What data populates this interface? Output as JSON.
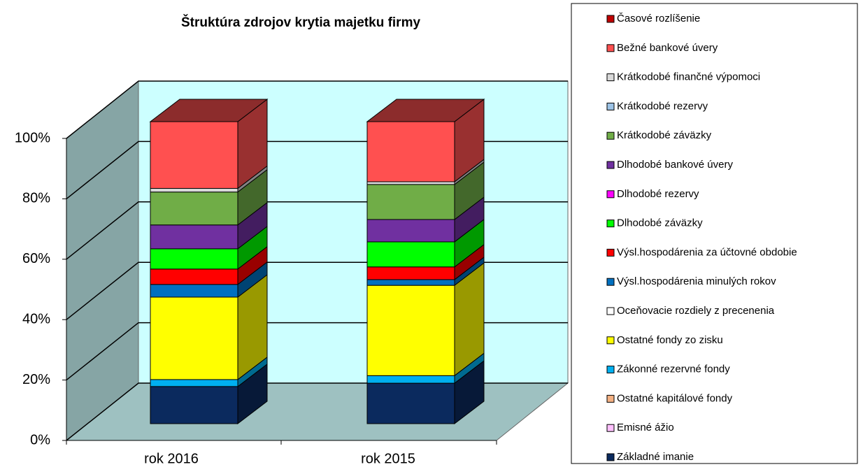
{
  "chart_data": {
    "type": "bar3d_stacked",
    "title": "Štruktúra zdrojov krytia majetku firmy",
    "categories": [
      "rok 2016",
      "rok 2015"
    ],
    "ylim": [
      0,
      100
    ],
    "yticks": [
      {
        "value": 0,
        "label": "0%"
      },
      {
        "value": 20,
        "label": "20%"
      },
      {
        "value": 40,
        "label": "40%"
      },
      {
        "value": 60,
        "label": "60%"
      },
      {
        "value": 80,
        "label": "80%"
      },
      {
        "value": 100,
        "label": "100%"
      }
    ],
    "grid": true,
    "legend": "right",
    "series": [
      {
        "name": "Základné imanie",
        "color": "#0b2a5e",
        "values": [
          12.3,
          13.4
        ]
      },
      {
        "name": "Emisné ážio",
        "color": "#ffc0ff",
        "values": [
          0,
          0
        ]
      },
      {
        "name": "Ostatné kapitálové fondy",
        "color": "#f4b183",
        "values": [
          0,
          0
        ]
      },
      {
        "name": "Zákonné rezervné fondy",
        "color": "#00b0f0",
        "values": [
          2.3,
          2.5
        ]
      },
      {
        "name": "Ostatné fondy zo zisku",
        "color": "#ffff00",
        "values": [
          27.3,
          29.9
        ]
      },
      {
        "name": "Oceňovacie rozdiely z precenenia",
        "color": "#ffffff",
        "values": [
          0,
          0
        ]
      },
      {
        "name": "Výsl.hospodárenia minulých rokov",
        "color": "#0070c0",
        "values": [
          4.2,
          1.9
        ]
      },
      {
        "name": "Výsl.hospodárenia za účtovné obdobie",
        "color": "#ff0000",
        "values": [
          5.1,
          4.2
        ]
      },
      {
        "name": "Dlhodobé záväzky",
        "color": "#00ff00",
        "values": [
          6.7,
          8.3
        ]
      },
      {
        "name": "Dlhodobé rezervy",
        "color": "#ff00ff",
        "values": [
          0,
          0
        ]
      },
      {
        "name": "Dlhodobé bankové úvery",
        "color": "#7030a0",
        "values": [
          7.9,
          7.4
        ]
      },
      {
        "name": "Krátkodobé záväzky",
        "color": "#70ad47",
        "values": [
          10.9,
          11.6
        ]
      },
      {
        "name": "Krátkodobé rezervy",
        "color": "#9dc3e6",
        "values": [
          0,
          0
        ]
      },
      {
        "name": "Krátkodobé finančné výpomoci",
        "color": "#d9d9d9",
        "values": [
          1.2,
          0.9
        ]
      },
      {
        "name": "Bežné bankové úvery",
        "color": "#ff5050",
        "values": [
          22.1,
          19.9
        ]
      },
      {
        "name": "Časové rozlíšenie",
        "color": "#c00000",
        "values": [
          0,
          0
        ]
      }
    ]
  }
}
